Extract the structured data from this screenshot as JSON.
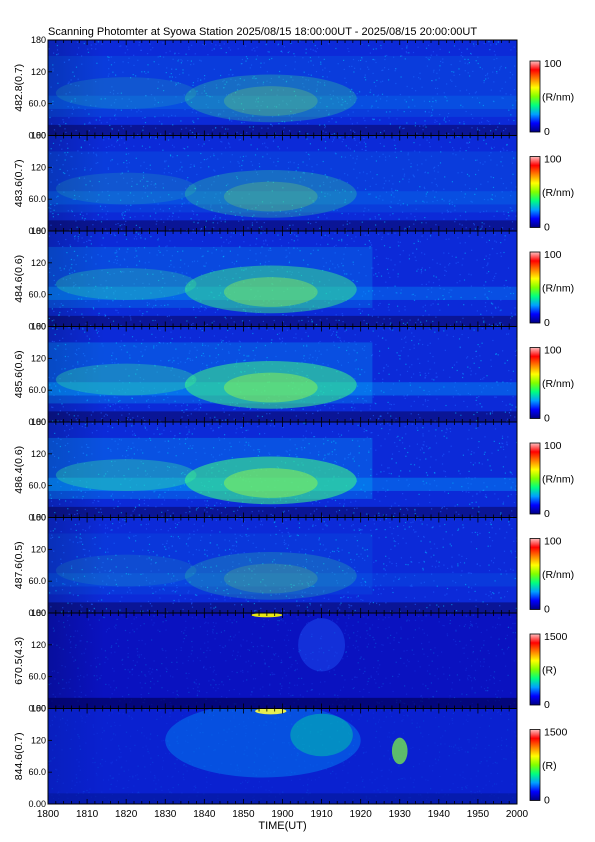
{
  "title": "Scanning Photomter at Syowa Station 2025/08/15 18:00:00UT - 2025/08/15 20:00:00UT",
  "chart_data": {
    "type": "heatmap",
    "xlabel": "TIME(UT)",
    "x_ticks": [
      "1800",
      "1810",
      "1820",
      "1830",
      "1840",
      "1850",
      "1900",
      "1910",
      "1920",
      "1930",
      "1940",
      "1950",
      "2000"
    ],
    "y_ticks": [
      "0.00",
      "60.0",
      "120",
      "180"
    ],
    "ylim": [
      0,
      180
    ],
    "colorscale": [
      "#000080",
      "#0000ff",
      "#00a0ff",
      "#00ff80",
      "#80ff00",
      "#ffff00",
      "#ff8000",
      "#ff0000",
      "#ffc0c0"
    ],
    "panels": [
      {
        "ylabel": "482.8(0.7)",
        "cbar_max": "100",
        "cbar_min": "0",
        "cbar_unit": "(R/nm)"
      },
      {
        "ylabel": "483.6(0.7)",
        "cbar_max": "100",
        "cbar_min": "0",
        "cbar_unit": "(R/nm)"
      },
      {
        "ylabel": "484.6(0.6)",
        "cbar_max": "100",
        "cbar_min": "0",
        "cbar_unit": "(R/nm)"
      },
      {
        "ylabel": "485.6(0.6)",
        "cbar_max": "100",
        "cbar_min": "0",
        "cbar_unit": "(R/nm)"
      },
      {
        "ylabel": "486.4(0.6)",
        "cbar_max": "100",
        "cbar_min": "0",
        "cbar_unit": "(R/nm)"
      },
      {
        "ylabel": "487.6(0.5)",
        "cbar_max": "100",
        "cbar_min": "0",
        "cbar_unit": "(R/nm)"
      },
      {
        "ylabel": "670.5(4.3)",
        "cbar_max": "1500",
        "cbar_min": "0",
        "cbar_unit": "(R)"
      },
      {
        "ylabel": "844.6(0.7)",
        "cbar_max": "1500",
        "cbar_min": "0",
        "cbar_unit": "(R)"
      }
    ]
  }
}
